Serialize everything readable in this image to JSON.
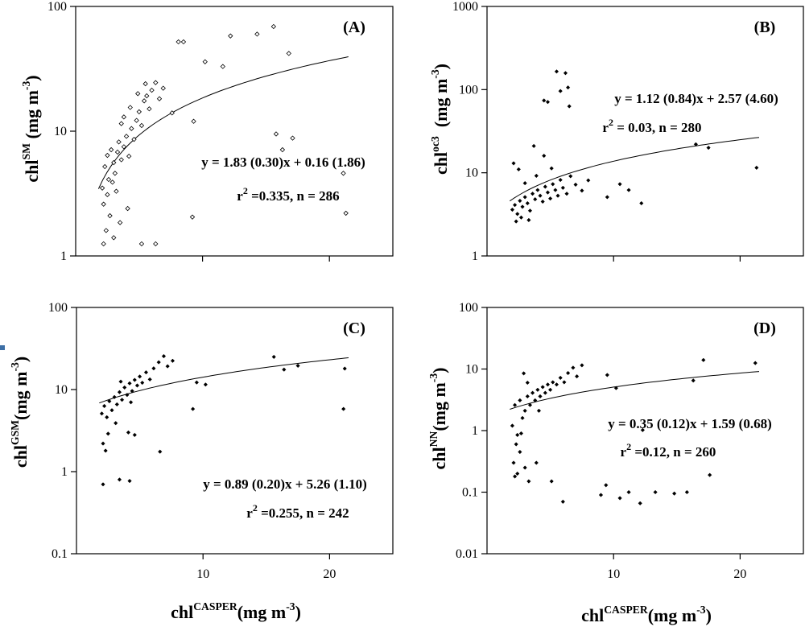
{
  "colors": {
    "axis": "#000000",
    "points": "#000000",
    "accent_mark": "#3d6fa6",
    "background": "#ffffff"
  },
  "figure_text": {
    "x_title_prefix": "chl",
    "x_title_super": "CASPER",
    "x_title_units_open": "(mg m",
    "x_title_units_exp": "-3",
    "x_title_units_close": ")"
  },
  "chart_data": [
    {
      "type": "scatter",
      "panel": "A",
      "label": "(A)",
      "ylabel_prefix": "chl",
      "ylabel_super": "SM",
      "ylabel_units_open": " (mg m",
      "ylabel_units_exp": "-3",
      "ylabel_units_close": ")",
      "xlim": [
        0,
        25
      ],
      "ylim": [
        1,
        100
      ],
      "yscale": "log",
      "x_ticks": [
        10,
        20
      ],
      "x_tick_labels": [],
      "y_ticks": [
        1,
        10,
        100
      ],
      "y_tick_labels": [
        "1",
        "10",
        "100"
      ],
      "marker": "open-diamond",
      "equation": "y = 1.83 (0.30)x + 0.16 (1.86)",
      "stats_r2_prefix": "r",
      "stats_r2_exp": "2",
      "stats_r2_rest": " =0.335, n = 286",
      "fit": {
        "slope": 1.83,
        "intercept": 0.16,
        "x_range": [
          1.8,
          21.5
        ]
      },
      "points": [
        [
          2.1,
          3.5
        ],
        [
          2.3,
          5.2
        ],
        [
          2.5,
          6.4
        ],
        [
          2.6,
          4.1
        ],
        [
          2.8,
          7.1
        ],
        [
          3.0,
          5.6
        ],
        [
          3.1,
          4.6
        ],
        [
          3.3,
          6.8
        ],
        [
          3.4,
          8.2
        ],
        [
          3.6,
          5.9
        ],
        [
          3.8,
          7.5
        ],
        [
          4.0,
          9.1
        ],
        [
          4.2,
          6.3
        ],
        [
          4.4,
          10.5
        ],
        [
          4.6,
          8.6
        ],
        [
          4.8,
          12.2
        ],
        [
          5.0,
          14.3
        ],
        [
          5.2,
          11.1
        ],
        [
          5.4,
          17.5
        ],
        [
          5.6,
          19.2
        ],
        [
          5.8,
          15.1
        ],
        [
          6.0,
          21.3
        ],
        [
          6.3,
          24.5
        ],
        [
          6.6,
          18.2
        ],
        [
          6.9,
          22.1
        ],
        [
          2.2,
          1.25
        ],
        [
          2.4,
          1.6
        ],
        [
          2.7,
          2.1
        ],
        [
          3.0,
          1.4
        ],
        [
          3.5,
          1.85
        ],
        [
          4.1,
          2.4
        ],
        [
          5.2,
          1.25
        ],
        [
          6.3,
          1.25
        ],
        [
          2.2,
          2.6
        ],
        [
          2.5,
          3.1
        ],
        [
          2.9,
          3.9
        ],
        [
          3.2,
          3.3
        ],
        [
          8.1,
          52
        ],
        [
          8.5,
          52
        ],
        [
          10.2,
          36
        ],
        [
          11.6,
          33
        ],
        [
          12.2,
          58
        ],
        [
          14.3,
          60
        ],
        [
          15.6,
          69
        ],
        [
          16.8,
          42
        ],
        [
          9.3,
          12
        ],
        [
          7.6,
          14
        ],
        [
          15.8,
          9.5
        ],
        [
          16.3,
          7.1
        ],
        [
          17.1,
          8.8
        ],
        [
          21.1,
          4.6
        ],
        [
          21.3,
          2.2
        ],
        [
          9.2,
          2.05
        ],
        [
          3.8,
          13
        ],
        [
          4.3,
          15.5
        ],
        [
          3.6,
          11.5
        ],
        [
          4.9,
          20
        ],
        [
          5.5,
          24
        ]
      ]
    },
    {
      "type": "scatter",
      "panel": "B",
      "label": "(B)",
      "ylabel_prefix": "chl",
      "ylabel_super": "oc3",
      "ylabel_units_open": "  (mg m",
      "ylabel_units_exp": "-3",
      "ylabel_units_close": ")",
      "xlim": [
        0,
        25
      ],
      "ylim": [
        1,
        1000
      ],
      "yscale": "log",
      "x_ticks": [
        10,
        20
      ],
      "x_tick_labels": [],
      "y_ticks": [
        1,
        10,
        100,
        1000
      ],
      "y_tick_labels": [
        "1",
        "10",
        "100",
        "1000"
      ],
      "marker": "filled-diamond",
      "equation": "y = 1.12 (0.84)x + 2.57 (4.60)",
      "stats_r2_prefix": "r",
      "stats_r2_exp": "2",
      "stats_r2_rest": " = 0.03, n = 280",
      "fit": {
        "slope": 1.12,
        "intercept": 2.57,
        "x_range": [
          1.8,
          21.5
        ]
      },
      "points": [
        [
          2.0,
          3.6
        ],
        [
          2.2,
          4.1
        ],
        [
          2.4,
          3.2
        ],
        [
          2.6,
          4.6
        ],
        [
          2.8,
          3.9
        ],
        [
          3.0,
          5.1
        ],
        [
          3.2,
          4.3
        ],
        [
          3.4,
          3.5
        ],
        [
          3.6,
          5.6
        ],
        [
          3.8,
          4.8
        ],
        [
          4.0,
          6.2
        ],
        [
          4.2,
          5.3
        ],
        [
          4.4,
          4.5
        ],
        [
          4.6,
          6.8
        ],
        [
          4.8,
          5.8
        ],
        [
          5.0,
          4.9
        ],
        [
          5.2,
          7.3
        ],
        [
          5.4,
          6.2
        ],
        [
          5.6,
          5.3
        ],
        [
          5.8,
          8.2
        ],
        [
          6.0,
          6.6
        ],
        [
          6.3,
          5.6
        ],
        [
          6.6,
          9.1
        ],
        [
          7.0,
          7.2
        ],
        [
          7.5,
          6.1
        ],
        [
          8.0,
          8.1
        ],
        [
          2.3,
          2.6
        ],
        [
          2.7,
          2.9
        ],
        [
          3.3,
          2.7
        ],
        [
          2.1,
          13
        ],
        [
          2.5,
          11
        ],
        [
          3.7,
          21
        ],
        [
          4.5,
          16
        ],
        [
          4.5,
          74
        ],
        [
          4.8,
          71
        ],
        [
          5.5,
          165
        ],
        [
          5.8,
          96
        ],
        [
          6.2,
          158
        ],
        [
          6.4,
          106
        ],
        [
          6.5,
          63
        ],
        [
          9.5,
          5.1
        ],
        [
          10.5,
          7.3
        ],
        [
          11.2,
          6.2
        ],
        [
          12.2,
          4.3
        ],
        [
          16.5,
          22
        ],
        [
          17.5,
          20
        ],
        [
          21.3,
          11.5
        ],
        [
          3.0,
          7.5
        ],
        [
          3.9,
          9.2
        ],
        [
          5.1,
          11.3
        ]
      ]
    },
    {
      "type": "scatter",
      "panel": "C",
      "label": "(C)",
      "ylabel_prefix": "chl",
      "ylabel_super": "GSM",
      "ylabel_units_open": "(mg m",
      "ylabel_units_exp": "-3",
      "ylabel_units_close": ")",
      "xlim": [
        0,
        25
      ],
      "ylim": [
        0.1,
        100
      ],
      "yscale": "log",
      "x_ticks": [
        10,
        20
      ],
      "x_tick_labels": [
        "10",
        "20"
      ],
      "y_ticks": [
        0.1,
        1,
        10,
        100
      ],
      "y_tick_labels": [
        "0.1",
        "1",
        "10",
        "100"
      ],
      "marker": "filled-diamond",
      "equation": "y = 0.89 (0.20)x + 5.26 (1.10)",
      "stats_r2_prefix": "r",
      "stats_r2_exp": "2",
      "stats_r2_rest": " =0.255, n = 242",
      "fit": {
        "slope": 0.89,
        "intercept": 5.26,
        "x_range": [
          1.8,
          21.5
        ]
      },
      "points": [
        [
          2.0,
          5.1
        ],
        [
          2.2,
          6.3
        ],
        [
          2.4,
          4.6
        ],
        [
          2.6,
          7.2
        ],
        [
          2.8,
          5.6
        ],
        [
          3.0,
          8.1
        ],
        [
          3.2,
          6.6
        ],
        [
          3.4,
          9.3
        ],
        [
          3.6,
          7.5
        ],
        [
          3.8,
          10.6
        ],
        [
          4.0,
          8.6
        ],
        [
          4.2,
          11.9
        ],
        [
          4.4,
          9.6
        ],
        [
          4.6,
          13.1
        ],
        [
          4.8,
          11.2
        ],
        [
          5.0,
          14.4
        ],
        [
          5.2,
          12.1
        ],
        [
          5.5,
          16.2
        ],
        [
          5.8,
          13.3
        ],
        [
          6.1,
          18.1
        ],
        [
          6.5,
          21.5
        ],
        [
          6.9,
          25.5
        ],
        [
          7.2,
          19.2
        ],
        [
          7.6,
          22.4
        ],
        [
          2.1,
          2.2
        ],
        [
          2.3,
          1.8
        ],
        [
          2.5,
          2.9
        ],
        [
          2.1,
          0.7
        ],
        [
          3.4,
          0.8
        ],
        [
          4.2,
          0.77
        ],
        [
          4.1,
          3.0
        ],
        [
          4.6,
          2.8
        ],
        [
          6.6,
          1.75
        ],
        [
          9.2,
          5.8
        ],
        [
          9.5,
          12.2
        ],
        [
          10.2,
          11.5
        ],
        [
          15.6,
          25
        ],
        [
          16.4,
          17.5
        ],
        [
          17.5,
          19.5
        ],
        [
          21.2,
          18
        ],
        [
          21.1,
          5.8
        ],
        [
          3.1,
          3.9
        ],
        [
          3.5,
          12.5
        ],
        [
          4.3,
          7.0
        ]
      ]
    },
    {
      "type": "scatter",
      "panel": "D",
      "label": "(D)",
      "ylabel_prefix": "chl",
      "ylabel_super": "NN",
      "ylabel_units_open": "(mg m",
      "ylabel_units_exp": "-3",
      "ylabel_units_close": ")",
      "xlim": [
        0,
        25
      ],
      "ylim": [
        0.01,
        100
      ],
      "yscale": "log",
      "x_ticks": [
        10,
        20
      ],
      "x_tick_labels": [
        "10",
        "20"
      ],
      "y_ticks": [
        0.01,
        0.1,
        1,
        10,
        100
      ],
      "y_tick_labels": [
        "0.01",
        "0.1",
        "1",
        "10",
        "100"
      ],
      "marker": "filled-diamond",
      "equation": "y = 0.35 (0.12)x + 1.59 (0.68)",
      "stats_r2_prefix": "r",
      "stats_r2_exp": "2",
      "stats_r2_rest": " =0.12, n = 260",
      "fit": {
        "slope": 0.35,
        "intercept": 1.59,
        "x_range": [
          1.8,
          21.5
        ]
      },
      "points": [
        [
          2.0,
          1.2
        ],
        [
          2.2,
          2.6
        ],
        [
          2.4,
          0.85
        ],
        [
          2.6,
          3.1
        ],
        [
          2.8,
          1.6
        ],
        [
          3.0,
          2.1
        ],
        [
          3.2,
          3.6
        ],
        [
          3.4,
          2.6
        ],
        [
          3.6,
          4.1
        ],
        [
          3.8,
          3.1
        ],
        [
          4.0,
          4.6
        ],
        [
          4.2,
          3.6
        ],
        [
          4.4,
          5.1
        ],
        [
          4.6,
          4.1
        ],
        [
          4.8,
          5.6
        ],
        [
          5.0,
          4.6
        ],
        [
          5.2,
          6.1
        ],
        [
          5.5,
          5.6
        ],
        [
          5.8,
          7.2
        ],
        [
          6.1,
          6.1
        ],
        [
          6.4,
          8.6
        ],
        [
          6.8,
          10.5
        ],
        [
          7.1,
          7.6
        ],
        [
          7.5,
          11.5
        ],
        [
          2.1,
          0.3
        ],
        [
          2.2,
          0.18
        ],
        [
          2.4,
          0.2
        ],
        [
          2.6,
          0.45
        ],
        [
          3.0,
          0.25
        ],
        [
          3.3,
          0.15
        ],
        [
          3.9,
          0.3
        ],
        [
          2.3,
          0.6
        ],
        [
          2.7,
          0.9
        ],
        [
          5.1,
          0.15
        ],
        [
          6.0,
          0.07
        ],
        [
          9.0,
          0.09
        ],
        [
          9.4,
          0.13
        ],
        [
          10.5,
          0.08
        ],
        [
          11.2,
          0.1
        ],
        [
          12.1,
          0.066
        ],
        [
          13.3,
          0.1
        ],
        [
          14.8,
          0.095
        ],
        [
          15.8,
          0.1
        ],
        [
          9.5,
          8.0
        ],
        [
          10.2,
          4.9
        ],
        [
          12.3,
          1.02
        ],
        [
          16.3,
          6.5
        ],
        [
          17.1,
          14
        ],
        [
          17.6,
          0.19
        ],
        [
          21.2,
          12.5
        ],
        [
          3.2,
          6.0
        ],
        [
          4.1,
          2.1
        ],
        [
          2.9,
          8.5
        ]
      ]
    }
  ]
}
